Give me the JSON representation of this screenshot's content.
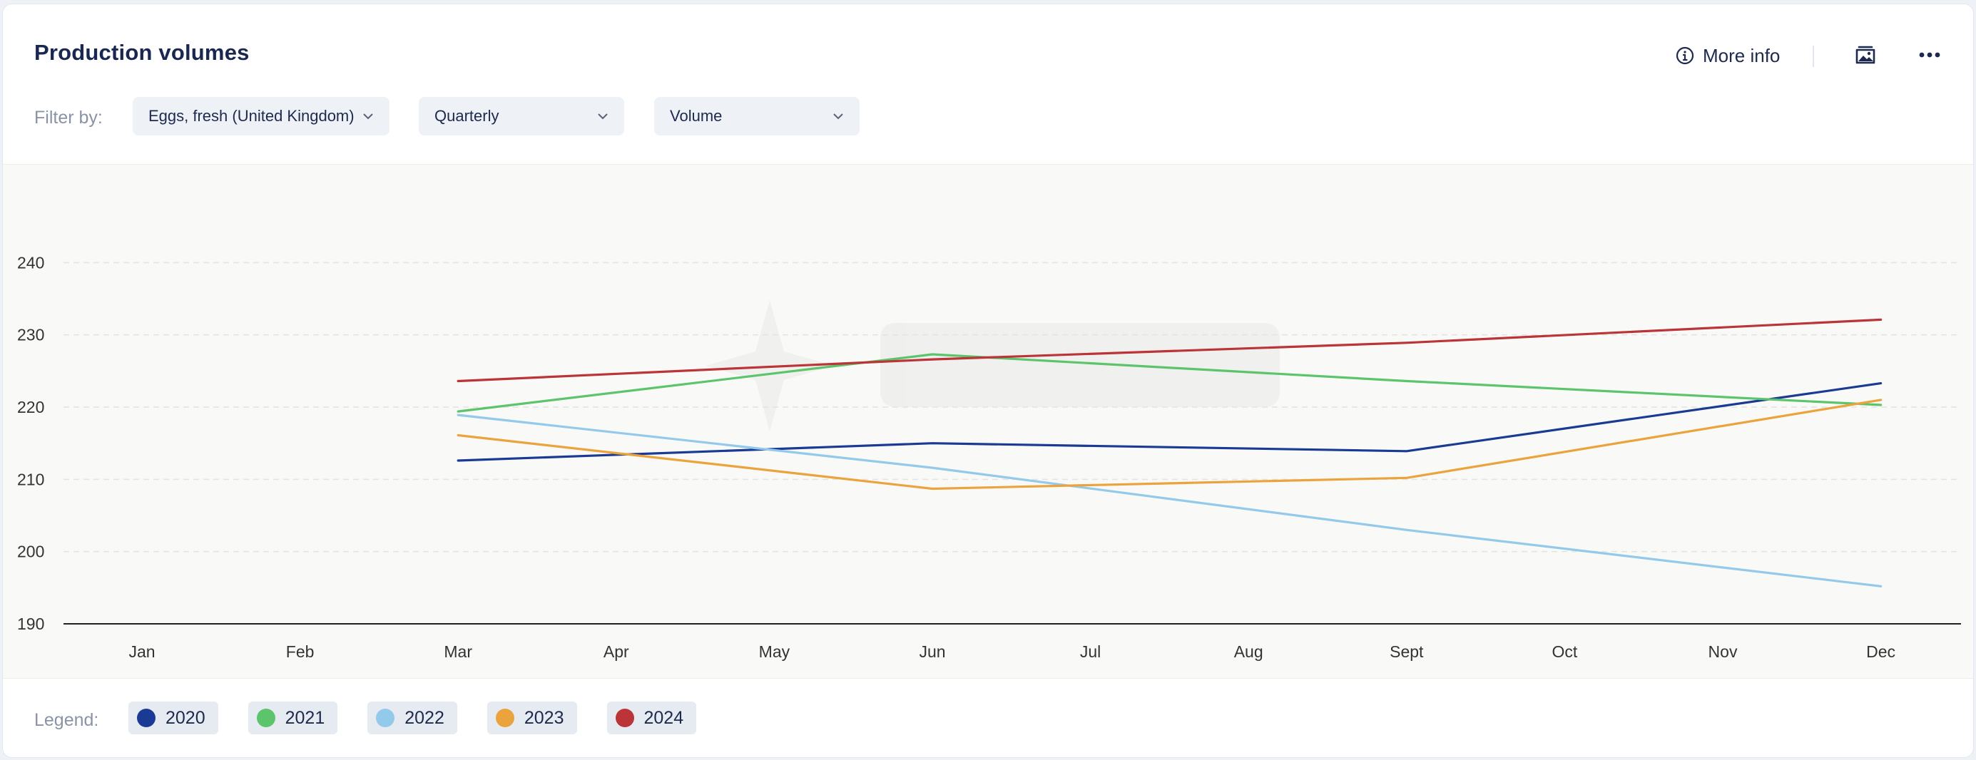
{
  "header": {
    "title": "Production volumes",
    "more_info_label": "More info",
    "icons": [
      "info-icon",
      "image-export-icon",
      "more-options-icon"
    ]
  },
  "filters": {
    "label": "Filter by:",
    "product": "Eggs, fresh (United Kingdom)",
    "frequency": "Quarterly",
    "measure": "Volume"
  },
  "legend": {
    "label": "Legend:"
  },
  "colors": {
    "2020": "#1a3a94",
    "2021": "#5cc46a",
    "2022": "#93c9ea",
    "2023": "#eba33d",
    "2024": "#bb3437",
    "axis": "#222222",
    "grid": "#e3e3e0"
  },
  "chart_data": {
    "type": "line",
    "categories": [
      "Jan",
      "Feb",
      "Mar",
      "Apr",
      "May",
      "Jun",
      "Jul",
      "Aug",
      "Sept",
      "Oct",
      "Nov",
      "Dec"
    ],
    "yticks": [
      190,
      200,
      210,
      220,
      230,
      240
    ],
    "ylim": [
      190,
      250
    ],
    "grid": true,
    "legend_position": "bottom",
    "series": [
      {
        "name": "2020",
        "x": [
          "Mar",
          "Jun",
          "Sept",
          "Dec"
        ],
        "values": [
          212.6,
          215.0,
          213.9,
          223.3
        ]
      },
      {
        "name": "2021",
        "x": [
          "Mar",
          "Jun",
          "Sept",
          "Dec"
        ],
        "values": [
          219.4,
          227.3,
          223.6,
          220.3
        ]
      },
      {
        "name": "2022",
        "x": [
          "Mar",
          "Jun",
          "Sept",
          "Dec"
        ],
        "values": [
          218.9,
          211.6,
          203.0,
          195.2
        ]
      },
      {
        "name": "2023",
        "x": [
          "Mar",
          "Jun",
          "Sept",
          "Dec"
        ],
        "values": [
          216.1,
          208.7,
          210.2,
          221.0
        ]
      },
      {
        "name": "2024",
        "x": [
          "Mar",
          "Jun",
          "Sept",
          "Dec"
        ],
        "values": [
          223.6,
          226.6,
          228.9,
          232.1
        ]
      }
    ]
  }
}
